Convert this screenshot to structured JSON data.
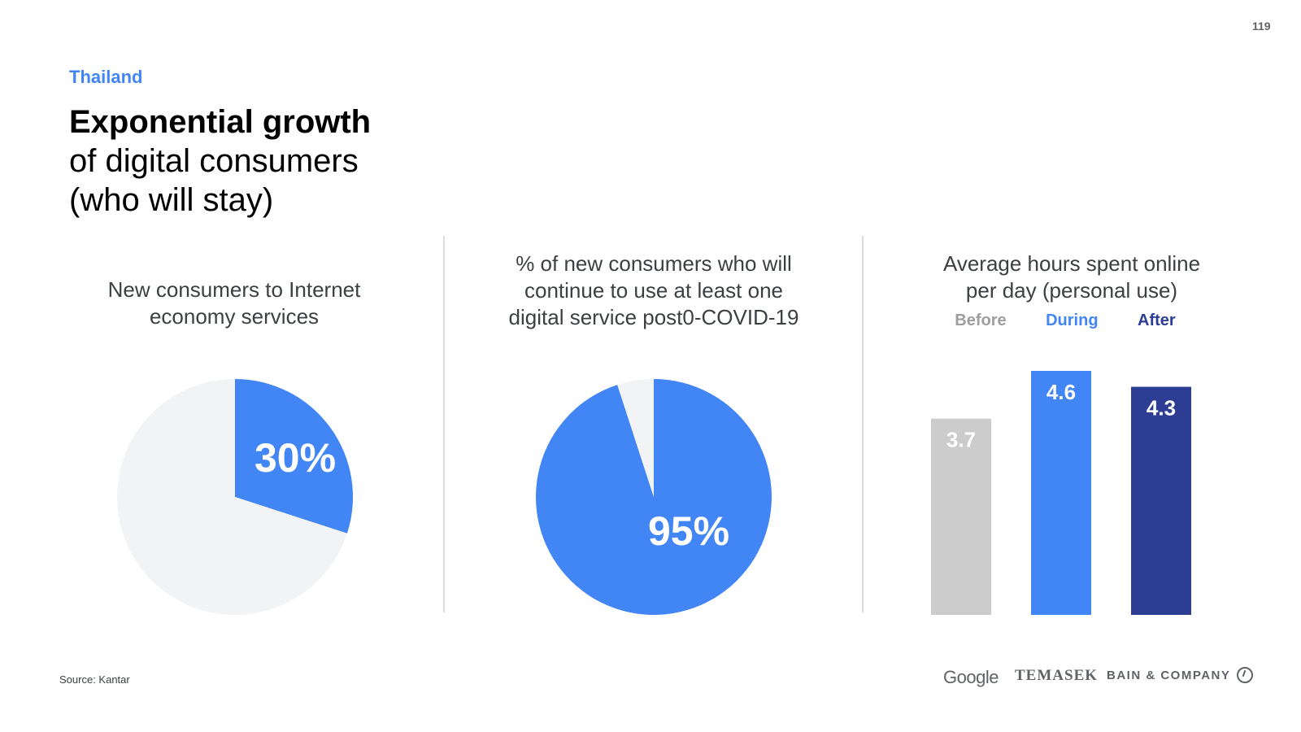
{
  "page_number": "119",
  "country": "Thailand",
  "title": {
    "bold": "Exponential growth",
    "rest_line1": "of digital consumers",
    "rest_line2": "(who will stay)"
  },
  "source": "Source: Kantar",
  "logos": {
    "google": "Google",
    "temasek": "TEMASEK",
    "bain": "BAIN & COMPANY"
  },
  "colors": {
    "accent": "#4285f4",
    "pie_rest": "#f1f3f4",
    "before": "#cccccc",
    "during": "#4285f4",
    "after": "#2e3d94"
  },
  "chart_data": [
    {
      "type": "pie",
      "title_lines": [
        "New consumers to Internet",
        "economy services"
      ],
      "slices": [
        {
          "label": "30%",
          "value": 30
        },
        {
          "label": "",
          "value": 70
        }
      ]
    },
    {
      "type": "pie",
      "title_lines": [
        "% of new consumers who will",
        "continue to use at least one",
        "digital service post0-COVID-19"
      ],
      "slices": [
        {
          "label": "95%",
          "value": 95
        },
        {
          "label": "",
          "value": 5
        }
      ]
    },
    {
      "type": "bar",
      "title_lines": [
        "Average hours spent online",
        "per day (personal use)"
      ],
      "categories": [
        "Before",
        "During",
        "After"
      ],
      "values": [
        3.7,
        4.6,
        4.3
      ],
      "value_labels": [
        "3.7",
        "4.6",
        "4.3"
      ]
    }
  ]
}
